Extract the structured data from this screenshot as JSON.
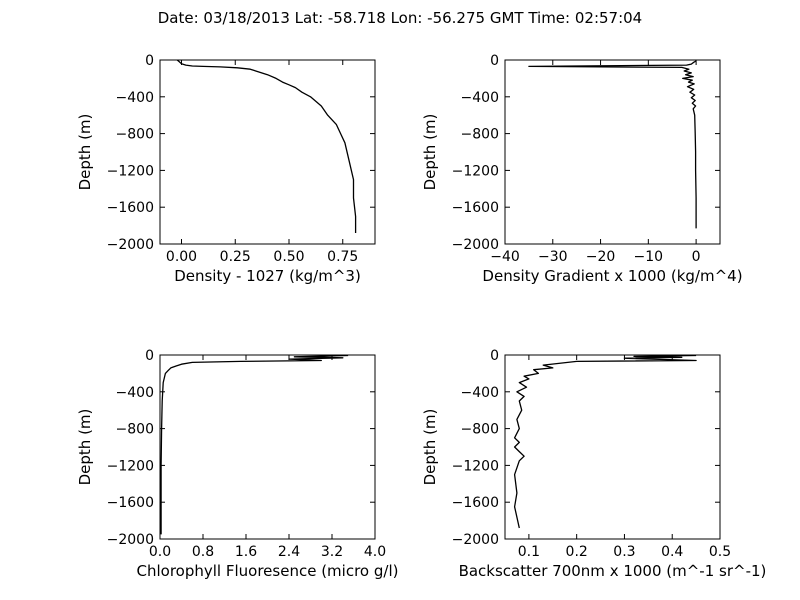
{
  "figure": {
    "title": "Date: 03/18/2013  Lat:  -58.718 Lon:  -56.275  GMT Time: 02:57:04",
    "background": "#ffffff",
    "line_color": "#000000"
  },
  "chart_data": [
    {
      "type": "line",
      "xlabel": "Density - 1027 (kg/m^3)",
      "ylabel": "Depth (m)",
      "xlim": [
        -0.1,
        0.9
      ],
      "ylim": [
        -2000,
        0
      ],
      "xticks": [
        0.0,
        0.25,
        0.5,
        0.75
      ],
      "xtick_labels": [
        "0.00",
        "0.25",
        "0.50",
        "0.75"
      ],
      "yticks": [
        0,
        -400,
        -800,
        -1200,
        -1600,
        -2000
      ],
      "ytick_labels": [
        "0",
        "−400",
        "−800",
        "−1200",
        "−1600",
        "−2000"
      ],
      "grid": false,
      "series": [
        {
          "x": [
            -0.02,
            -0.01,
            0.0,
            0.02,
            0.05,
            0.1,
            0.18,
            0.26,
            0.32,
            0.36,
            0.4,
            0.44,
            0.47,
            0.5,
            0.53,
            0.56,
            0.6,
            0.65,
            0.68,
            0.72,
            0.74,
            0.76,
            0.78,
            0.8,
            0.8,
            0.81,
            0.81
          ],
          "y": [
            0,
            -20,
            -40,
            -55,
            -65,
            -70,
            -75,
            -85,
            -100,
            -130,
            -160,
            -200,
            -240,
            -270,
            -300,
            -350,
            -400,
            -500,
            -600,
            -700,
            -800,
            -900,
            -1100,
            -1300,
            -1500,
            -1700,
            -1880
          ]
        }
      ]
    },
    {
      "type": "line",
      "xlabel": "Density Gradient x 1000 (kg/m^4)",
      "ylabel": "Depth (m)",
      "xlim": [
        -40,
        5
      ],
      "ylim": [
        -2000,
        0
      ],
      "xticks": [
        -40,
        -30,
        -20,
        -10,
        0
      ],
      "xtick_labels": [
        "−40",
        "−30",
        "−20",
        "−10",
        "0"
      ],
      "yticks": [
        0,
        -400,
        -800,
        -1200,
        -1600,
        -2000
      ],
      "ytick_labels": [
        "0",
        "−400",
        "−800",
        "−1200",
        "−1600",
        "−2000"
      ],
      "grid": false,
      "series": [
        {
          "x": [
            0,
            -0.5,
            -1,
            -2,
            -35,
            -3,
            -1.5,
            -2.5,
            -1,
            -2.2,
            -0.6,
            -2.8,
            -0.8,
            -1.6,
            -0.4,
            -1.8,
            -0.5,
            -1.3,
            -0.3,
            -1.0,
            -0.2,
            -0.8,
            -0.1,
            -0.6,
            -0.3,
            -0.2,
            -0.1,
            -0.1,
            0,
            0
          ],
          "y": [
            -10,
            -25,
            -45,
            -55,
            -70,
            -80,
            -100,
            -120,
            -140,
            -160,
            -180,
            -200,
            -220,
            -240,
            -260,
            -290,
            -320,
            -350,
            -380,
            -410,
            -440,
            -470,
            -500,
            -530,
            -600,
            -800,
            -1000,
            -1200,
            -1500,
            -1830
          ]
        }
      ]
    },
    {
      "type": "line",
      "xlabel": "Chlorophyll Fluoresence (micro g/l)",
      "ylabel": "Depth (m)",
      "xlim": [
        0.0,
        4.0
      ],
      "ylim": [
        -2000,
        0
      ],
      "xticks": [
        0.0,
        0.8,
        1.6,
        2.4,
        3.2,
        4.0
      ],
      "xtick_labels": [
        "0.0",
        "0.8",
        "1.6",
        "2.4",
        "3.2",
        "4.0"
      ],
      "yticks": [
        0,
        -400,
        -800,
        -1200,
        -1600,
        -2000
      ],
      "ytick_labels": [
        "0",
        "−400",
        "−800",
        "−1200",
        "−1600",
        "−2000"
      ],
      "grid": false,
      "series": [
        {
          "x": [
            3.5,
            2.5,
            3.4,
            2.4,
            3.0,
            1.5,
            0.6,
            0.4,
            0.3,
            0.2,
            0.15,
            0.1,
            0.06,
            0.04,
            0.03,
            0.02,
            0.02
          ],
          "y": [
            -5,
            -20,
            -30,
            -45,
            -60,
            -70,
            -80,
            -100,
            -120,
            -140,
            -170,
            -200,
            -300,
            -500,
            -800,
            -1200,
            -1950
          ]
        }
      ]
    },
    {
      "type": "line",
      "xlabel": "Backscatter 700nm x 1000 (m^-1 sr^-1)",
      "ylabel": "Depth (m)",
      "xlim": [
        0.05,
        0.5
      ],
      "ylim": [
        -2000,
        0
      ],
      "xticks": [
        0.1,
        0.2,
        0.3,
        0.4,
        0.5
      ],
      "xtick_labels": [
        "0.1",
        "0.2",
        "0.3",
        "0.4",
        "0.5"
      ],
      "yticks": [
        0,
        -400,
        -800,
        -1200,
        -1600,
        -2000
      ],
      "ytick_labels": [
        "0",
        "−400",
        "−800",
        "−1200",
        "−1600",
        "−2000"
      ],
      "grid": false,
      "series": [
        {
          "x": [
            0.45,
            0.32,
            0.42,
            0.3,
            0.45,
            0.2,
            0.13,
            0.15,
            0.11,
            0.12,
            0.09,
            0.1,
            0.08,
            0.095,
            0.075,
            0.09,
            0.08,
            0.085,
            0.075,
            0.08,
            0.07,
            0.08,
            0.07,
            0.08,
            0.09,
            0.08,
            0.07,
            0.075,
            0.07,
            0.08
          ],
          "y": [
            -5,
            -15,
            -25,
            -35,
            -60,
            -70,
            -110,
            -140,
            -160,
            -200,
            -230,
            -260,
            -300,
            -350,
            -400,
            -450,
            -500,
            -600,
            -700,
            -800,
            -900,
            -950,
            -1000,
            -1050,
            -1100,
            -1150,
            -1300,
            -1500,
            -1650,
            -1880
          ]
        }
      ]
    }
  ]
}
